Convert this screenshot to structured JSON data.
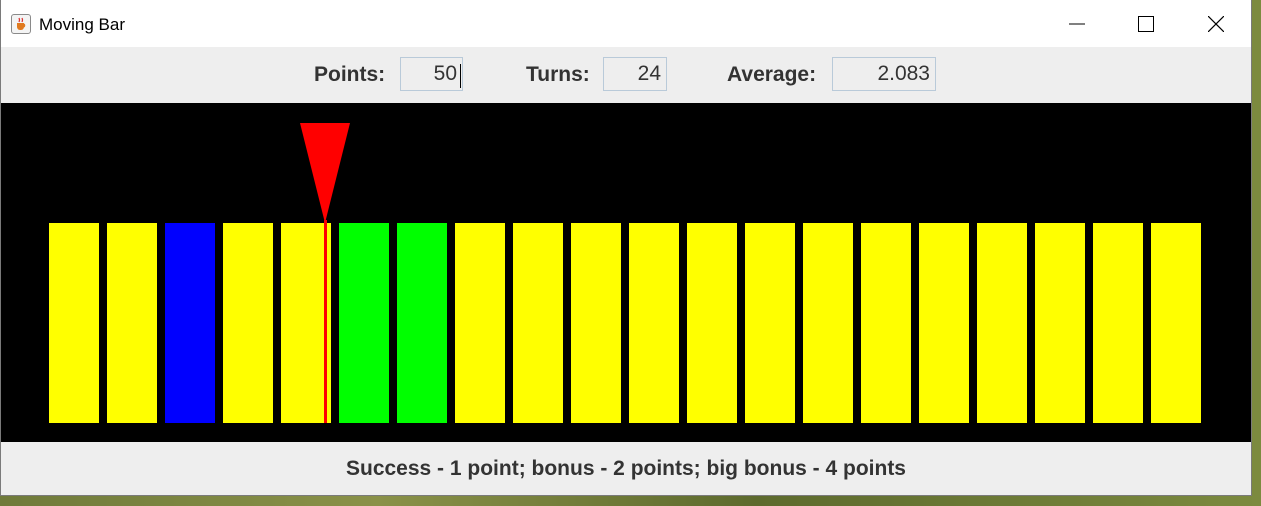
{
  "window": {
    "title": "Moving Bar",
    "icon": "java-cup-icon",
    "controls": [
      "minimize-icon",
      "maximize-icon",
      "close-icon"
    ]
  },
  "score": {
    "points_label": "Points:",
    "points_value": "50",
    "turns_label": "Turns:",
    "turns_value": "24",
    "average_label": "Average:",
    "average_value": "2.083"
  },
  "game": {
    "background": "#000000",
    "bars": [
      {
        "color": "#ffff00"
      },
      {
        "color": "#ffff00"
      },
      {
        "color": "#0000ff"
      },
      {
        "color": "#ffff00"
      },
      {
        "color": "#ffff00"
      },
      {
        "color": "#00ff00"
      },
      {
        "color": "#00ff00"
      },
      {
        "color": "#ffff00"
      },
      {
        "color": "#ffff00"
      },
      {
        "color": "#ffff00"
      },
      {
        "color": "#ffff00"
      },
      {
        "color": "#ffff00"
      },
      {
        "color": "#ffff00"
      },
      {
        "color": "#ffff00"
      },
      {
        "color": "#ffff00"
      },
      {
        "color": "#ffff00"
      },
      {
        "color": "#ffff00"
      },
      {
        "color": "#ffff00"
      },
      {
        "color": "#ffff00"
      },
      {
        "color": "#ffff00"
      }
    ],
    "pointer": {
      "color": "#ff0000",
      "bar_index": 4
    }
  },
  "footer": {
    "text": "Success - 1 point; bonus - 2 points; big bonus - 4 points"
  }
}
